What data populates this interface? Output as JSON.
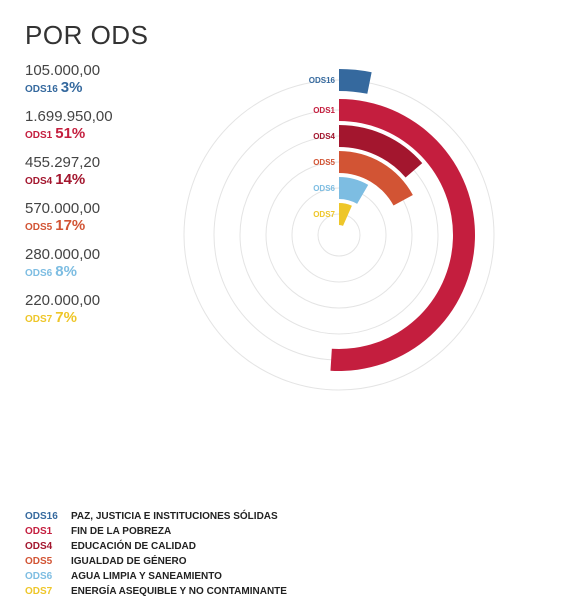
{
  "title": "POR ODS",
  "chart_data": {
    "type": "radial-bar",
    "max": 3333333,
    "series": [
      {
        "code": "ODS16",
        "value": 105000.0,
        "value_text": "105.000,00",
        "pct": "3%",
        "color": "#35699e",
        "description": "PAZ, JUSTICIA E INSTITUCIONES SÓLIDAS"
      },
      {
        "code": "ODS1",
        "value": 1699950.0,
        "value_text": "1.699.950,00",
        "pct": "51%",
        "color": "#c41e3e",
        "description": "FIN DE LA POBREZA"
      },
      {
        "code": "ODS4",
        "value": 455297.2,
        "value_text": "455.297,20",
        "pct": "14%",
        "color": "#a3162e",
        "description": "EDUCACIÓN DE CALIDAD"
      },
      {
        "code": "ODS5",
        "value": 570000.0,
        "value_text": "570.000,00",
        "pct": "17%",
        "color": "#d25434",
        "description": "IGUALDAD DE GÉNERO"
      },
      {
        "code": "ODS6",
        "value": 280000.0,
        "value_text": "280.000,00",
        "pct": "8%",
        "color": "#7dbde2",
        "description": "AGUA LIMPIA Y SANEAMIENTO"
      },
      {
        "code": "ODS7",
        "value": 220000.0,
        "value_text": "220.000,00",
        "pct": "7%",
        "color": "#eec629",
        "description": "ENERGÍA ASEQUIBLE Y NO CONTAMINANTE"
      }
    ]
  }
}
